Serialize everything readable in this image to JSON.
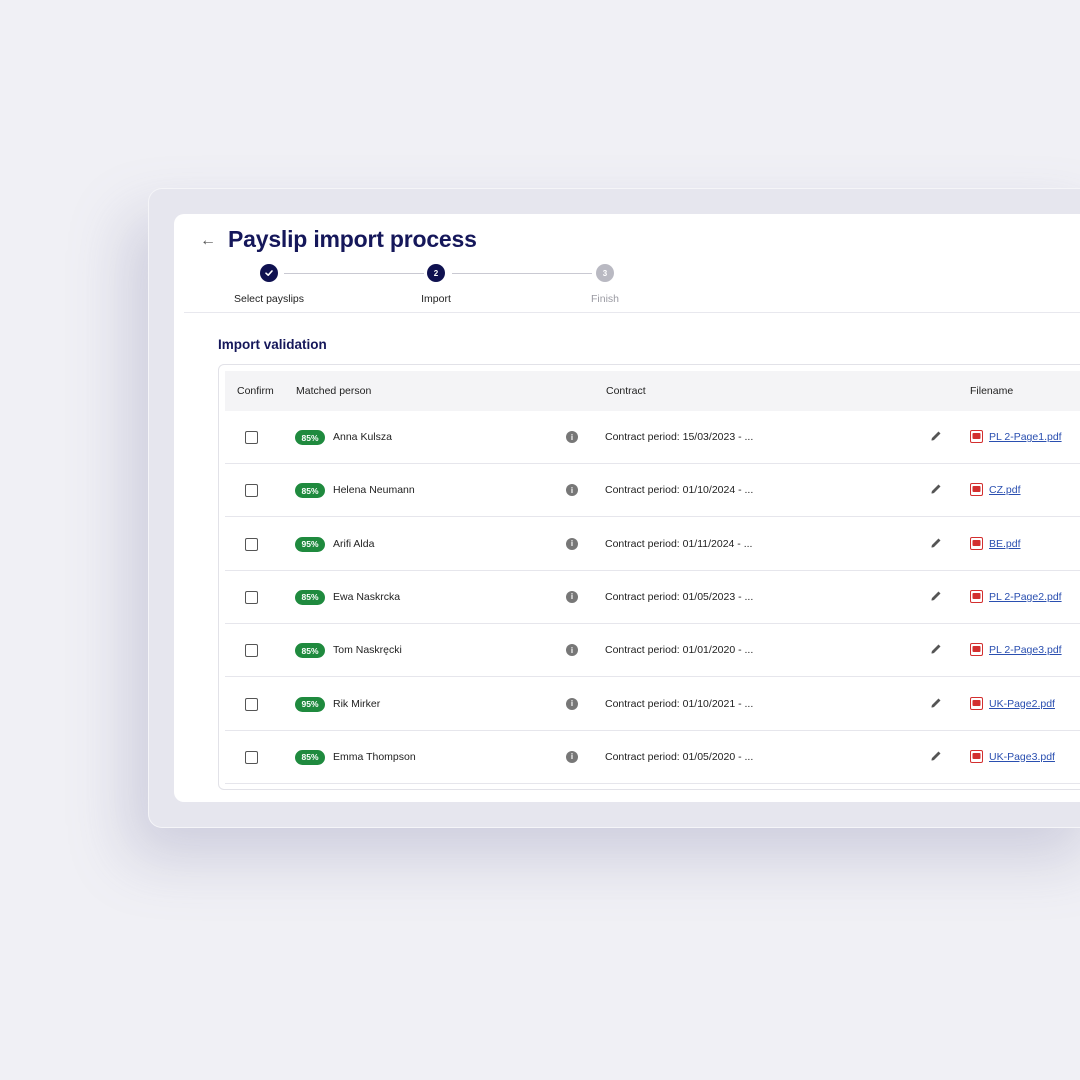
{
  "header": {
    "back_icon": "arrow-left-icon",
    "title": "Payslip import process"
  },
  "stepper": {
    "steps": [
      {
        "label": "Select payslips",
        "number": "1",
        "state": "done",
        "icon": "check-icon"
      },
      {
        "label": "Import",
        "number": "2",
        "state": "active"
      },
      {
        "label": "Finish",
        "number": "3",
        "state": "pending"
      }
    ]
  },
  "section": {
    "title": "Import validation"
  },
  "table": {
    "columns": {
      "confirm": "Confirm",
      "matched_person": "Matched person",
      "contract": "Contract",
      "filename": "Filename"
    },
    "rows": [
      {
        "confirmed": false,
        "match": "85%",
        "person": "Anna Kulsza",
        "contract": "Contract period: 15/03/2023 - ...",
        "filename": "PL 2-Page1.pdf"
      },
      {
        "confirmed": false,
        "match": "85%",
        "person": "Helena Neumann",
        "contract": "Contract period: 01/10/2024 - ...",
        "filename": "CZ.pdf"
      },
      {
        "confirmed": false,
        "match": "95%",
        "person": "Arifi Alda",
        "contract": "Contract period: 01/11/2024 - ...",
        "filename": "BE.pdf"
      },
      {
        "confirmed": false,
        "match": "85%",
        "person": "Ewa Naskrcka",
        "contract": "Contract period: 01/05/2023 - ...",
        "filename": "PL 2-Page2.pdf"
      },
      {
        "confirmed": false,
        "match": "85%",
        "person": "Tom Naskręcki",
        "contract": "Contract period: 01/01/2020 - ...",
        "filename": "PL 2-Page3.pdf"
      },
      {
        "confirmed": false,
        "match": "95%",
        "person": "Rik Mirker",
        "contract": "Contract period: 01/10/2021 - ...",
        "filename": "UK-Page2.pdf"
      },
      {
        "confirmed": false,
        "match": "85%",
        "person": "Emma Thompson",
        "contract": "Contract period: 01/05/2020 - ...",
        "filename": "UK-Page3.pdf"
      }
    ]
  },
  "colors": {
    "background": "#f0f0f5",
    "title": "#15175a",
    "badge": "#1f8a3e",
    "link": "#2a4fb0",
    "pdf": "#d32f2f"
  }
}
